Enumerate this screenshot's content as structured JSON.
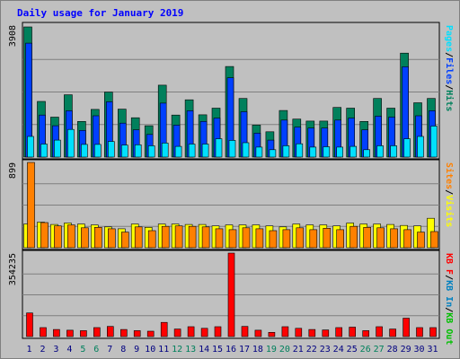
{
  "title": "Daily usage for January 2019",
  "colors": {
    "hits": "#00805c",
    "files": "#0040ff",
    "pages": "#00e0ff",
    "visits": "#ffff00",
    "sites": "#ff8000",
    "kbin": "#0080c0",
    "kbout": "#00c000",
    "kbf": "#ff0000",
    "weekend": "#00805c",
    "weekday": "#000080",
    "grid": "#7f7f7f"
  },
  "chart_data": [
    {
      "type": "bar",
      "categories": [
        "1",
        "2",
        "3",
        "4",
        "5",
        "6",
        "7",
        "8",
        "9",
        "10",
        "11",
        "12",
        "13",
        "14",
        "15",
        "16",
        "17",
        "18",
        "19",
        "20",
        "21",
        "22",
        "23",
        "24",
        "25",
        "26",
        "27",
        "28",
        "29",
        "30",
        "31"
      ],
      "weekend_days": [
        5,
        6,
        12,
        13,
        19,
        20,
        26,
        27
      ],
      "ytick": "3908",
      "ymax": 3908,
      "legend": [
        "Pages",
        "/",
        "Files",
        "/",
        "Hits"
      ],
      "series": [
        {
          "name": "Hits",
          "values": [
            3908,
            1670,
            1200,
            1870,
            1070,
            1430,
            1950,
            1440,
            1180,
            940,
            2160,
            1260,
            1720,
            1270,
            1470,
            2720,
            1760,
            960,
            760,
            1400,
            1140,
            1080,
            1080,
            1490,
            1470,
            1070,
            1760,
            1470,
            3120,
            1630,
            1760
          ]
        },
        {
          "name": "Files",
          "values": [
            3420,
            1260,
            940,
            1390,
            800,
            1240,
            1660,
            1020,
            820,
            680,
            1620,
            960,
            1390,
            1070,
            1170,
            2380,
            1360,
            720,
            510,
            1110,
            900,
            870,
            870,
            1110,
            1170,
            820,
            1230,
            1200,
            2710,
            1240,
            1390
          ]
        },
        {
          "name": "Pages",
          "values": [
            620,
            390,
            510,
            830,
            380,
            380,
            470,
            360,
            370,
            340,
            420,
            320,
            390,
            390,
            550,
            500,
            430,
            300,
            220,
            340,
            400,
            300,
            310,
            300,
            320,
            220,
            340,
            340,
            550,
            620,
            930
          ]
        }
      ]
    },
    {
      "type": "bar",
      "categories": [
        "1",
        "2",
        "3",
        "4",
        "5",
        "6",
        "7",
        "8",
        "9",
        "10",
        "11",
        "12",
        "13",
        "14",
        "15",
        "16",
        "17",
        "18",
        "19",
        "20",
        "21",
        "22",
        "23",
        "24",
        "25",
        "26",
        "27",
        "28",
        "29",
        "30",
        "31"
      ],
      "ytick": "899",
      "ymax": 899,
      "legend": [
        "Sites",
        "/",
        "Visits"
      ],
      "series": [
        {
          "name": "Visits",
          "values": [
            250,
            270,
            245,
            260,
            250,
            240,
            220,
            200,
            250,
            215,
            250,
            250,
            245,
            245,
            230,
            240,
            240,
            240,
            230,
            220,
            250,
            240,
            240,
            230,
            260,
            250,
            250,
            245,
            235,
            230,
            310
          ]
        },
        {
          "name": "Sites",
          "values": [
            899,
            265,
            230,
            240,
            210,
            215,
            200,
            165,
            220,
            180,
            225,
            230,
            225,
            220,
            200,
            190,
            210,
            200,
            180,
            190,
            210,
            190,
            205,
            190,
            225,
            215,
            210,
            200,
            190,
            165,
            170
          ]
        }
      ]
    },
    {
      "type": "bar",
      "categories": [
        "1",
        "2",
        "3",
        "4",
        "5",
        "6",
        "7",
        "8",
        "9",
        "10",
        "11",
        "12",
        "13",
        "14",
        "15",
        "16",
        "17",
        "18",
        "19",
        "20",
        "21",
        "22",
        "23",
        "24",
        "25",
        "26",
        "27",
        "28",
        "29",
        "30",
        "31"
      ],
      "ytick": "354235",
      "ymax": 354235,
      "legend": [
        "KB F",
        "/",
        "KB In",
        "/",
        "KB Out"
      ],
      "series": [
        {
          "name": "KB F",
          "values": [
            100000,
            38000,
            30000,
            27000,
            25000,
            38000,
            43000,
            30000,
            25000,
            23000,
            60000,
            32000,
            42000,
            35000,
            42000,
            354235,
            43000,
            27000,
            18000,
            42000,
            35000,
            30000,
            28000,
            38000,
            40000,
            25000,
            42000,
            32000,
            78000,
            38000,
            38000
          ]
        }
      ]
    }
  ]
}
